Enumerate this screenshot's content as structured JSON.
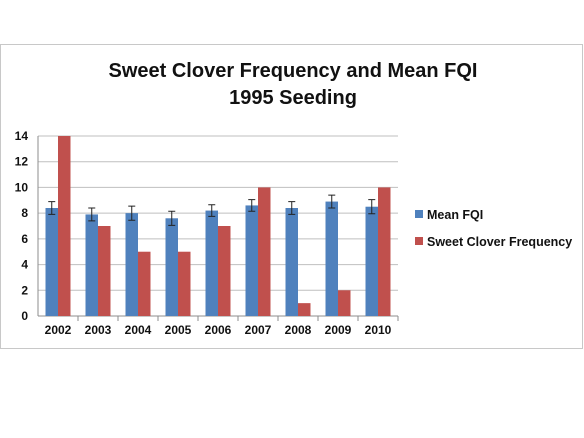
{
  "chart_data": {
    "type": "bar",
    "title": "Sweet Clover Frequency and Mean FQI",
    "subtitle": "1995 Seeding",
    "categories": [
      "2002",
      "2003",
      "2004",
      "2005",
      "2006",
      "2007",
      "2008",
      "2009",
      "2010"
    ],
    "series": [
      {
        "name": "Mean FQI",
        "color": "#4f81bd",
        "values": [
          8.4,
          7.9,
          8.0,
          7.6,
          8.2,
          8.6,
          8.4,
          8.9,
          8.5
        ],
        "error": [
          0.5,
          0.5,
          0.55,
          0.55,
          0.45,
          0.45,
          0.5,
          0.5,
          0.55
        ]
      },
      {
        "name": "Sweet Clover Frequency",
        "color": "#c0504d",
        "values": [
          14,
          7,
          5,
          5,
          7,
          10,
          1,
          2,
          10
        ]
      }
    ],
    "ylim": [
      0,
      14
    ],
    "yticks": [
      0,
      2,
      4,
      6,
      8,
      10,
      12,
      14
    ],
    "grid": true,
    "legend": "right"
  }
}
